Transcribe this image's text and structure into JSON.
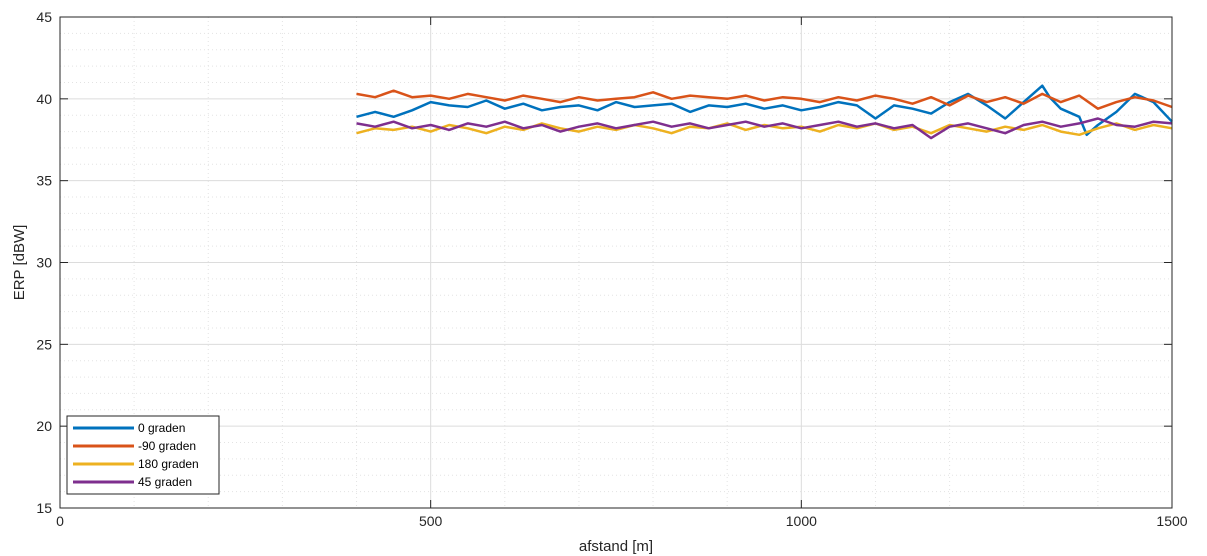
{
  "chart_data": {
    "type": "line",
    "xlabel": "afstand [m]",
    "ylabel": "ERP [dBW]",
    "xlim": [
      0,
      1500
    ],
    "ylim": [
      15,
      45
    ],
    "x_ticks": [
      0,
      500,
      1000,
      1500
    ],
    "y_ticks": [
      15,
      20,
      25,
      30,
      35,
      40,
      45
    ],
    "grid": "major-and-minor",
    "legend_position": "bottom-left",
    "series": [
      {
        "name": "0 graden",
        "color": "#0072BD",
        "x": [
          400,
          425,
          450,
          475,
          500,
          525,
          550,
          575,
          600,
          625,
          650,
          675,
          700,
          725,
          750,
          775,
          800,
          825,
          850,
          875,
          900,
          925,
          950,
          975,
          1000,
          1025,
          1050,
          1075,
          1100,
          1125,
          1150,
          1175,
          1200,
          1225,
          1250,
          1275,
          1300,
          1325,
          1335,
          1350,
          1375,
          1385,
          1400,
          1425,
          1450,
          1475,
          1500
        ],
        "y": [
          38.9,
          39.2,
          38.9,
          39.3,
          39.8,
          39.6,
          39.5,
          39.9,
          39.4,
          39.7,
          39.3,
          39.5,
          39.6,
          39.3,
          39.8,
          39.5,
          39.6,
          39.7,
          39.2,
          39.6,
          39.5,
          39.7,
          39.4,
          39.6,
          39.3,
          39.5,
          39.8,
          39.6,
          38.8,
          39.6,
          39.4,
          39.1,
          39.8,
          40.3,
          39.6,
          38.8,
          39.8,
          40.8,
          40.1,
          39.4,
          38.9,
          37.8,
          38.4,
          39.2,
          40.3,
          39.8,
          38.6
        ]
      },
      {
        "name": "-90 graden",
        "color": "#D95319",
        "x": [
          400,
          425,
          450,
          475,
          500,
          525,
          550,
          575,
          600,
          625,
          650,
          675,
          700,
          725,
          750,
          775,
          800,
          825,
          850,
          875,
          900,
          925,
          950,
          975,
          1000,
          1025,
          1050,
          1075,
          1100,
          1125,
          1150,
          1175,
          1200,
          1225,
          1250,
          1275,
          1300,
          1325,
          1350,
          1375,
          1400,
          1425,
          1450,
          1475,
          1500
        ],
        "y": [
          40.3,
          40.1,
          40.5,
          40.1,
          40.2,
          40.0,
          40.3,
          40.1,
          39.9,
          40.2,
          40.0,
          39.8,
          40.1,
          39.9,
          40.0,
          40.1,
          40.4,
          40.0,
          40.2,
          40.1,
          40.0,
          40.2,
          39.9,
          40.1,
          40.0,
          39.8,
          40.1,
          39.9,
          40.2,
          40.0,
          39.7,
          40.1,
          39.6,
          40.2,
          39.8,
          40.1,
          39.7,
          40.3,
          39.8,
          40.2,
          39.4,
          39.8,
          40.1,
          39.9,
          39.5
        ]
      },
      {
        "name": "180 graden",
        "color": "#EDB120",
        "x": [
          400,
          425,
          450,
          475,
          500,
          525,
          550,
          575,
          600,
          625,
          650,
          675,
          700,
          725,
          750,
          775,
          800,
          825,
          850,
          875,
          900,
          925,
          950,
          975,
          1000,
          1025,
          1050,
          1075,
          1100,
          1125,
          1150,
          1175,
          1200,
          1225,
          1250,
          1275,
          1300,
          1325,
          1350,
          1375,
          1400,
          1425,
          1450,
          1475,
          1500
        ],
        "y": [
          37.9,
          38.2,
          38.1,
          38.3,
          38.0,
          38.4,
          38.2,
          37.9,
          38.3,
          38.1,
          38.5,
          38.2,
          38.0,
          38.3,
          38.1,
          38.4,
          38.2,
          37.9,
          38.3,
          38.2,
          38.5,
          38.1,
          38.4,
          38.2,
          38.3,
          38.0,
          38.4,
          38.2,
          38.5,
          38.1,
          38.3,
          37.9,
          38.4,
          38.2,
          38.0,
          38.3,
          38.1,
          38.4,
          38.0,
          37.8,
          38.2,
          38.5,
          38.1,
          38.4,
          38.2
        ]
      },
      {
        "name": "45 graden",
        "color": "#7E2F8E",
        "x": [
          400,
          425,
          450,
          475,
          500,
          525,
          550,
          575,
          600,
          625,
          650,
          675,
          700,
          725,
          750,
          775,
          800,
          825,
          850,
          875,
          900,
          925,
          950,
          975,
          1000,
          1025,
          1050,
          1075,
          1100,
          1125,
          1150,
          1175,
          1200,
          1225,
          1250,
          1275,
          1300,
          1325,
          1350,
          1375,
          1400,
          1425,
          1450,
          1475,
          1500
        ],
        "y": [
          38.5,
          38.3,
          38.6,
          38.2,
          38.4,
          38.1,
          38.5,
          38.3,
          38.6,
          38.2,
          38.4,
          38.0,
          38.3,
          38.5,
          38.2,
          38.4,
          38.6,
          38.3,
          38.5,
          38.2,
          38.4,
          38.6,
          38.3,
          38.5,
          38.2,
          38.4,
          38.6,
          38.3,
          38.5,
          38.2,
          38.4,
          37.6,
          38.3,
          38.5,
          38.2,
          37.9,
          38.4,
          38.6,
          38.3,
          38.5,
          38.8,
          38.4,
          38.3,
          38.6,
          38.5
        ]
      }
    ]
  }
}
